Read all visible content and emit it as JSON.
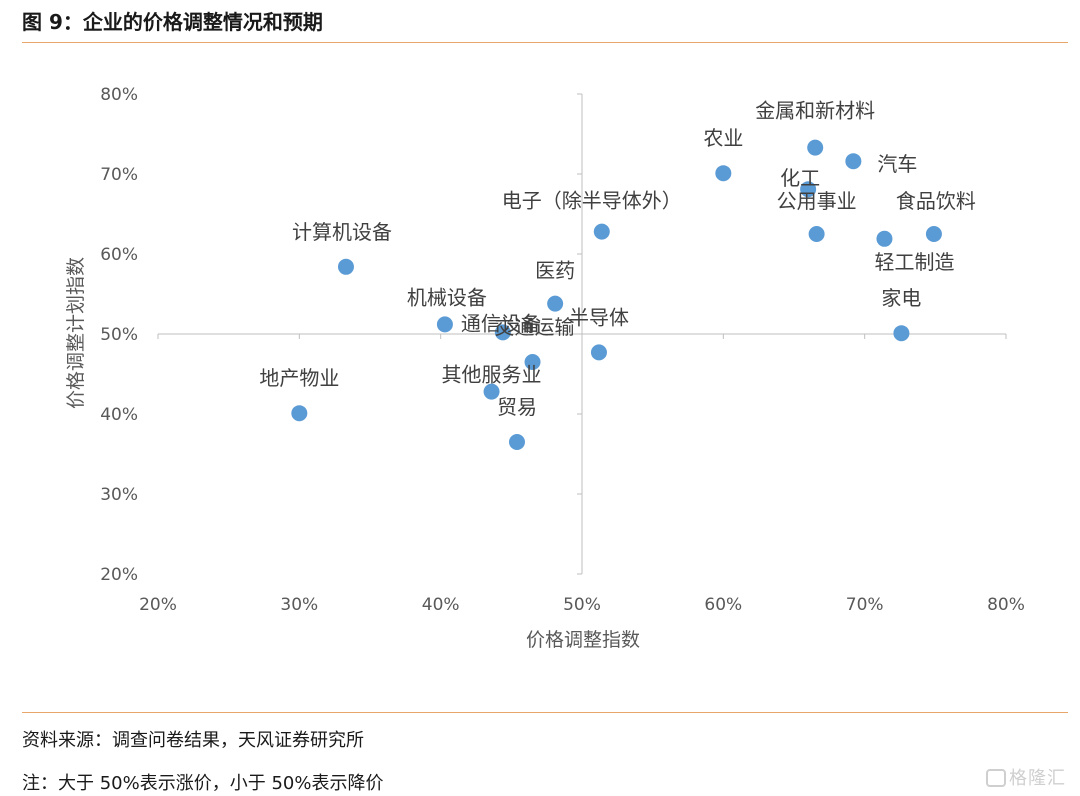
{
  "figure": {
    "title": "图 9：企业的价格调整情况和预期",
    "source": "资料来源：调查问卷结果，天风证券研究所",
    "note": "注：大于 50%表示涨价，小于 50%表示降价",
    "watermark": "格隆汇"
  },
  "colors": {
    "marker": "#5b9bd5",
    "axis": "#bfbfbf",
    "rule": "#e8a66a",
    "text": "#595959"
  },
  "chart_data": {
    "type": "scatter",
    "xlabel": "价格调整指数",
    "ylabel": "价格调整计划指数",
    "xlim": [
      0.2,
      0.8
    ],
    "ylim": [
      0.2,
      0.8
    ],
    "x_ticks": [
      0.2,
      0.3,
      0.4,
      0.5,
      0.6,
      0.7,
      0.8
    ],
    "y_ticks": [
      0.2,
      0.3,
      0.4,
      0.5,
      0.6,
      0.7,
      0.8
    ],
    "x_tick_labels": [
      "20%",
      "30%",
      "40%",
      "50%",
      "60%",
      "70%",
      "80%"
    ],
    "y_tick_labels": [
      "20%",
      "30%",
      "40%",
      "50%",
      "60%",
      "70%",
      "80%"
    ],
    "axes_cross_at": [
      0.5,
      0.5
    ],
    "grid": false,
    "points": [
      {
        "label": "金属和新材料",
        "x": 0.665,
        "y": 0.733
      },
      {
        "label": "农业",
        "x": 0.6,
        "y": 0.701
      },
      {
        "label": "化工",
        "x": 0.66,
        "y": 0.681
      },
      {
        "label": "汽车",
        "x": 0.692,
        "y": 0.716
      },
      {
        "label": "电子（除半导体外）",
        "x": 0.514,
        "y": 0.628
      },
      {
        "label": "公用事业",
        "x": 0.666,
        "y": 0.625
      },
      {
        "label": "食品饮料",
        "x": 0.749,
        "y": 0.625
      },
      {
        "label": "轻工制造",
        "x": 0.714,
        "y": 0.619
      },
      {
        "label": "计算机设备",
        "x": 0.333,
        "y": 0.584
      },
      {
        "label": "医药",
        "x": 0.481,
        "y": 0.538
      },
      {
        "label": "机械设备",
        "x": 0.403,
        "y": 0.512
      },
      {
        "label": "通信设备",
        "x": 0.444,
        "y": 0.502
      },
      {
        "label": "家电",
        "x": 0.726,
        "y": 0.501
      },
      {
        "label": "半导体",
        "x": 0.512,
        "y": 0.477
      },
      {
        "label": "交通运输",
        "x": 0.465,
        "y": 0.465
      },
      {
        "label": "其他服务业",
        "x": 0.436,
        "y": 0.428
      },
      {
        "label": "地产物业",
        "x": 0.3,
        "y": 0.401
      },
      {
        "label": "贸易",
        "x": 0.454,
        "y": 0.365
      }
    ]
  }
}
